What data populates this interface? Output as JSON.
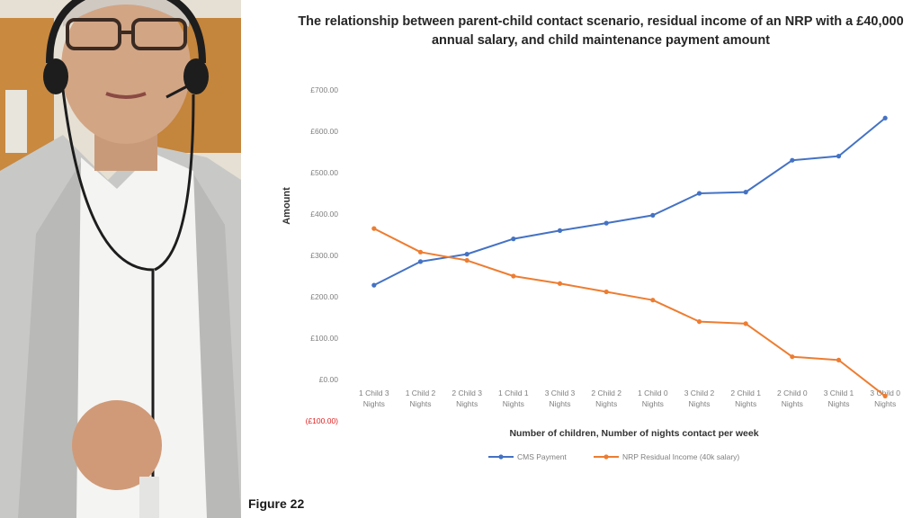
{
  "figure_label": "Figure 22",
  "chart_data": {
    "type": "line",
    "title": "The relationship between parent-child contact scenario, residual income of an NRP with a £40,000 annual salary, and child maintenance payment amount",
    "xlabel": "Number of children, Number of nights contact per week",
    "ylabel": "Amount",
    "ylim": [
      -100,
      700
    ],
    "y_ticks": [
      "(£100.00)",
      "£0.00",
      "£100.00",
      "£200.00",
      "£300.00",
      "£400.00",
      "£500.00",
      "£600.00",
      "£700.00"
    ],
    "y_tick_values": [
      -100,
      0,
      100,
      200,
      300,
      400,
      500,
      600,
      700
    ],
    "categories": [
      [
        "1 Child 3",
        "Nights"
      ],
      [
        "1 Child 2",
        "Nights"
      ],
      [
        "2 Child 3",
        "Nights"
      ],
      [
        "1 Child 1",
        "Nights"
      ],
      [
        "3 Child 3",
        "Nights"
      ],
      [
        "2 Child 2",
        "Nights"
      ],
      [
        "1 Child 0",
        "Nights"
      ],
      [
        "3 Child 2",
        "Nights"
      ],
      [
        "2 Child 1",
        "Nights"
      ],
      [
        "2 Child 0",
        "Nights"
      ],
      [
        "3 Child 1",
        "Nights"
      ],
      [
        "3 Child 0",
        "Nights"
      ]
    ],
    "series": [
      {
        "name": "CMS Payment",
        "color": "#4472c4",
        "values": [
          228,
          285,
          303,
          340,
          360,
          378,
          397,
          450,
          453,
          530,
          540,
          632
        ]
      },
      {
        "name": "NRP Residual Income (40k salary)",
        "color": "#ed7d31",
        "values": [
          365,
          308,
          288,
          250,
          232,
          212,
          192,
          140,
          135,
          55,
          47,
          -40
        ]
      }
    ],
    "grid": false,
    "legend_position": "bottom"
  }
}
